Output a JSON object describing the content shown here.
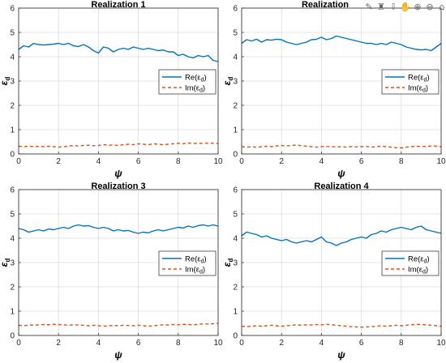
{
  "toolbar": {
    "icons": [
      "pencil-icon",
      "brush-icon",
      "export-icon",
      "pan-hand-icon",
      "zoom-in-icon",
      "zoom-out-icon",
      "home-icon"
    ]
  },
  "chart_data": [
    {
      "type": "line",
      "title": "Realization 1",
      "xlabel": "ψ",
      "ylabel": "ε",
      "ylabel_sub": "d",
      "xlim": [
        0,
        10
      ],
      "ylim": [
        0,
        6
      ],
      "xticks": [
        0,
        2,
        4,
        6,
        8,
        10
      ],
      "yticks": [
        0,
        1,
        2,
        3,
        4,
        5,
        6
      ],
      "grid": true,
      "legend": "right",
      "legend_entries": [
        "Re(ε_d)",
        "Im(ε_d)"
      ],
      "x": [
        0,
        0.25,
        0.5,
        0.75,
        1,
        1.25,
        1.5,
        1.75,
        2,
        2.25,
        2.5,
        2.75,
        3,
        3.25,
        3.5,
        3.75,
        4,
        4.25,
        4.5,
        4.75,
        5,
        5.25,
        5.5,
        5.75,
        6,
        6.25,
        6.5,
        6.75,
        7,
        7.25,
        7.5,
        7.75,
        8,
        8.25,
        8.5,
        8.75,
        9,
        9.25,
        9.5,
        9.75,
        10
      ],
      "series": [
        {
          "name": "Re(ε_d)",
          "color": "#0072BD",
          "dash": false,
          "values": [
            4.3,
            4.45,
            4.4,
            4.55,
            4.5,
            4.48,
            4.5,
            4.52,
            4.55,
            4.5,
            4.55,
            4.45,
            4.42,
            4.5,
            4.4,
            4.25,
            4.15,
            4.4,
            4.35,
            4.2,
            4.3,
            4.35,
            4.3,
            4.4,
            4.35,
            4.3,
            4.35,
            4.3,
            4.25,
            4.28,
            4.2,
            4.2,
            4.05,
            4.1,
            4.0,
            3.95,
            4.05,
            4.0,
            4.05,
            3.85,
            3.8
          ]
        },
        {
          "name": "Im(ε_d)",
          "color": "#D95319",
          "dash": true,
          "values": [
            0.32,
            0.3,
            0.32,
            0.3,
            0.31,
            0.3,
            0.32,
            0.3,
            0.28,
            0.3,
            0.32,
            0.35,
            0.33,
            0.35,
            0.36,
            0.34,
            0.35,
            0.38,
            0.36,
            0.37,
            0.35,
            0.38,
            0.4,
            0.38,
            0.42,
            0.4,
            0.38,
            0.42,
            0.4,
            0.38,
            0.4,
            0.42,
            0.44,
            0.42,
            0.45,
            0.43,
            0.44,
            0.43,
            0.45,
            0.44,
            0.43
          ]
        }
      ]
    },
    {
      "type": "line",
      "title": "Realization",
      "xlabel": "ψ",
      "ylabel": "ε",
      "ylabel_sub": "d",
      "xlim": [
        0,
        10
      ],
      "ylim": [
        0,
        6
      ],
      "xticks": [
        0,
        2,
        4,
        6,
        8,
        10
      ],
      "yticks": [
        0,
        1,
        2,
        3,
        4,
        5,
        6
      ],
      "grid": true,
      "legend": "right",
      "legend_entries": [
        "Re(ε_d)",
        "Im(ε_d)"
      ],
      "x": [
        0,
        0.25,
        0.5,
        0.75,
        1,
        1.25,
        1.5,
        1.75,
        2,
        2.25,
        2.5,
        2.75,
        3,
        3.25,
        3.5,
        3.75,
        4,
        4.25,
        4.5,
        4.75,
        5,
        5.25,
        5.5,
        5.75,
        6,
        6.25,
        6.5,
        6.75,
        7,
        7.25,
        7.5,
        7.75,
        8,
        8.25,
        8.5,
        8.75,
        9,
        9.25,
        9.5,
        9.75,
        10
      ],
      "series": [
        {
          "name": "Re(ε_d)",
          "color": "#0072BD",
          "dash": false,
          "values": [
            4.55,
            4.7,
            4.65,
            4.72,
            4.6,
            4.7,
            4.68,
            4.72,
            4.7,
            4.6,
            4.55,
            4.5,
            4.55,
            4.6,
            4.7,
            4.72,
            4.8,
            4.7,
            4.75,
            4.85,
            4.8,
            4.75,
            4.7,
            4.65,
            4.6,
            4.55,
            4.55,
            4.5,
            4.55,
            4.5,
            4.6,
            4.55,
            4.5,
            4.4,
            4.35,
            4.3,
            4.28,
            4.3,
            4.25,
            4.4,
            4.55
          ]
        },
        {
          "name": "Im(ε_d)",
          "color": "#D95319",
          "dash": true,
          "values": [
            0.3,
            0.28,
            0.3,
            0.27,
            0.3,
            0.32,
            0.3,
            0.33,
            0.35,
            0.33,
            0.35,
            0.37,
            0.34,
            0.32,
            0.3,
            0.28,
            0.3,
            0.31,
            0.3,
            0.29,
            0.3,
            0.28,
            0.3,
            0.29,
            0.3,
            0.31,
            0.28,
            0.3,
            0.32,
            0.3,
            0.28,
            0.26,
            0.25,
            0.28,
            0.3,
            0.32,
            0.3,
            0.31,
            0.33,
            0.32,
            0.3
          ]
        }
      ]
    },
    {
      "type": "line",
      "title": "Realization 3",
      "xlabel": "ψ",
      "ylabel": "ε",
      "ylabel_sub": "d",
      "xlim": [
        0,
        10
      ],
      "ylim": [
        0,
        6
      ],
      "xticks": [
        0,
        2,
        4,
        6,
        8,
        10
      ],
      "yticks": [
        0,
        1,
        2,
        3,
        4,
        5,
        6
      ],
      "grid": true,
      "legend": "right",
      "legend_entries": [
        "Re(ε_d)",
        "Im(ε_d)"
      ],
      "x": [
        0,
        0.25,
        0.5,
        0.75,
        1,
        1.25,
        1.5,
        1.75,
        2,
        2.25,
        2.5,
        2.75,
        3,
        3.25,
        3.5,
        3.75,
        4,
        4.25,
        4.5,
        4.75,
        5,
        5.25,
        5.5,
        5.75,
        6,
        6.25,
        6.5,
        6.75,
        7,
        7.25,
        7.5,
        7.75,
        8,
        8.25,
        8.5,
        8.75,
        9,
        9.25,
        9.5,
        9.75,
        10
      ],
      "series": [
        {
          "name": "Re(ε_d)",
          "color": "#0072BD",
          "dash": false,
          "values": [
            4.4,
            4.35,
            4.25,
            4.3,
            4.35,
            4.3,
            4.38,
            4.35,
            4.4,
            4.45,
            4.4,
            4.5,
            4.55,
            4.5,
            4.52,
            4.45,
            4.4,
            4.45,
            4.4,
            4.3,
            4.35,
            4.3,
            4.32,
            4.25,
            4.2,
            4.25,
            4.22,
            4.3,
            4.35,
            4.3,
            4.35,
            4.4,
            4.45,
            4.42,
            4.5,
            4.45,
            4.52,
            4.55,
            4.5,
            4.55,
            4.5
          ]
        },
        {
          "name": "Im(ε_d)",
          "color": "#D95319",
          "dash": true,
          "values": [
            0.42,
            0.4,
            0.43,
            0.42,
            0.44,
            0.45,
            0.44,
            0.46,
            0.45,
            0.44,
            0.42,
            0.44,
            0.43,
            0.42,
            0.4,
            0.42,
            0.4,
            0.38,
            0.4,
            0.41,
            0.4,
            0.42,
            0.41,
            0.4,
            0.42,
            0.4,
            0.38,
            0.4,
            0.42,
            0.44,
            0.43,
            0.45,
            0.44,
            0.46,
            0.45,
            0.44,
            0.46,
            0.48,
            0.47,
            0.48,
            0.5
          ]
        }
      ]
    },
    {
      "type": "line",
      "title": "Realization 4",
      "xlabel": "ψ",
      "ylabel": "ε",
      "ylabel_sub": "d",
      "xlim": [
        0,
        10
      ],
      "ylim": [
        0,
        6
      ],
      "xticks": [
        0,
        2,
        4,
        6,
        8,
        10
      ],
      "yticks": [
        0,
        1,
        2,
        3,
        4,
        5,
        6
      ],
      "grid": true,
      "legend": "right",
      "legend_entries": [
        "Re(ε_d)",
        "Im(ε_d)"
      ],
      "x": [
        0,
        0.25,
        0.5,
        0.75,
        1,
        1.25,
        1.5,
        1.75,
        2,
        2.25,
        2.5,
        2.75,
        3,
        3.25,
        3.5,
        3.75,
        4,
        4.25,
        4.5,
        4.75,
        5,
        5.25,
        5.5,
        5.75,
        6,
        6.25,
        6.5,
        6.75,
        7,
        7.25,
        7.5,
        7.75,
        8,
        8.25,
        8.5,
        8.75,
        9,
        9.25,
        9.5,
        9.75,
        10
      ],
      "series": [
        {
          "name": "Re(ε_d)",
          "color": "#0072BD",
          "dash": false,
          "values": [
            4.1,
            4.25,
            4.2,
            4.15,
            4.05,
            4.1,
            4.0,
            3.95,
            3.9,
            3.95,
            3.85,
            3.8,
            3.85,
            3.9,
            3.85,
            3.95,
            4.05,
            3.85,
            3.8,
            3.7,
            3.8,
            3.85,
            3.95,
            4.0,
            4.05,
            4.0,
            4.15,
            4.2,
            4.3,
            4.25,
            4.35,
            4.4,
            4.45,
            4.4,
            4.35,
            4.45,
            4.5,
            4.35,
            4.3,
            4.25,
            4.2
          ]
        },
        {
          "name": "Im(ε_d)",
          "color": "#D95319",
          "dash": true,
          "values": [
            0.38,
            0.36,
            0.38,
            0.4,
            0.38,
            0.4,
            0.42,
            0.4,
            0.38,
            0.4,
            0.42,
            0.44,
            0.42,
            0.44,
            0.43,
            0.45,
            0.44,
            0.46,
            0.44,
            0.42,
            0.4,
            0.38,
            0.36,
            0.35,
            0.34,
            0.35,
            0.36,
            0.38,
            0.4,
            0.38,
            0.4,
            0.42,
            0.4,
            0.42,
            0.44,
            0.46,
            0.45,
            0.44,
            0.42,
            0.4,
            0.38
          ]
        }
      ]
    }
  ]
}
